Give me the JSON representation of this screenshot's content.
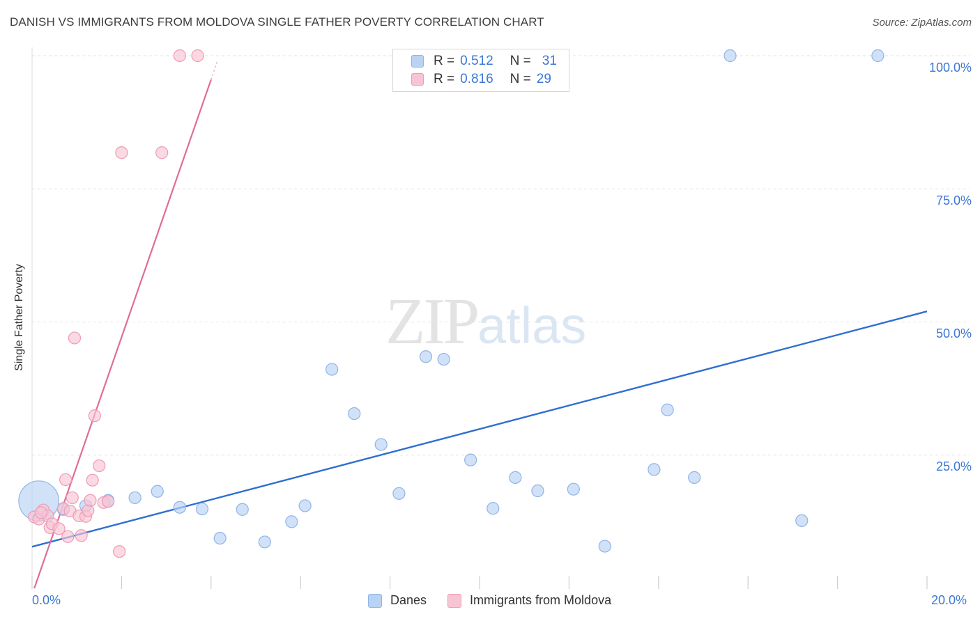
{
  "header": {
    "title": "DANISH VS IMMIGRANTS FROM MOLDOVA SINGLE FATHER POVERTY CORRELATION CHART",
    "source": "Source: ZipAtlas.com"
  },
  "watermark": {
    "zip": "ZIP",
    "atlas": "atlas"
  },
  "legend": {
    "danes": {
      "r_label": "R =",
      "r_value": "0.512",
      "n_label": "N =",
      "n_value": "31"
    },
    "moldova": {
      "r_label": "R =",
      "r_value": "0.816",
      "n_label": "N =",
      "n_value": "29"
    }
  },
  "colors": {
    "danes_fill": "#b9d3f5",
    "danes_stroke": "#8fb4e6",
    "danes_line": "#2e6fd1",
    "moldova_fill": "#f8c4d4",
    "moldova_stroke": "#ee9bb5",
    "moldova_line": "#e06c98",
    "axis_text": "#3b78d4"
  },
  "chart_data": {
    "type": "scatter",
    "title": "DANISH VS IMMIGRANTS FROM MOLDOVA SINGLE FATHER POVERTY CORRELATION CHART",
    "xlabel": "",
    "ylabel": "Single Father Poverty",
    "xlim": [
      0,
      20
    ],
    "ylim": [
      0,
      102
    ],
    "x_ticks": [
      "0.0%",
      "20.0%"
    ],
    "y_ticks": [
      "25.0%",
      "50.0%",
      "75.0%",
      "100.0%"
    ],
    "grid": true,
    "legend_position": "top-center",
    "series": [
      {
        "name": "Danes",
        "points": [
          [
            0.15,
            16.4
          ],
          [
            0.7,
            14.8
          ],
          [
            1.2,
            15.5
          ],
          [
            1.7,
            16.5
          ],
          [
            2.3,
            17.0
          ],
          [
            2.8,
            18.2
          ],
          [
            3.3,
            15.2
          ],
          [
            3.8,
            14.9
          ],
          [
            4.2,
            9.4
          ],
          [
            4.7,
            14.8
          ],
          [
            5.2,
            8.7
          ],
          [
            5.8,
            12.5
          ],
          [
            6.1,
            15.5
          ],
          [
            6.7,
            41.1
          ],
          [
            7.2,
            32.8
          ],
          [
            7.8,
            27.0
          ],
          [
            8.2,
            17.8
          ],
          [
            8.8,
            43.5
          ],
          [
            9.2,
            43.0
          ],
          [
            9.8,
            24.1
          ],
          [
            10.3,
            15.0
          ],
          [
            10.8,
            20.8
          ],
          [
            11.3,
            18.3
          ],
          [
            12.1,
            18.6
          ],
          [
            12.8,
            7.9
          ],
          [
            13.9,
            22.3
          ],
          [
            14.2,
            33.5
          ],
          [
            14.8,
            20.8
          ],
          [
            15.6,
            100.0
          ],
          [
            17.2,
            12.7
          ],
          [
            18.9,
            100.0
          ]
        ],
        "sizes": [
          5.2,
          1,
          1,
          1,
          1,
          1,
          1,
          1,
          1,
          1,
          1,
          1,
          1,
          1,
          1,
          1,
          1,
          1,
          1,
          1,
          1,
          1,
          1,
          1,
          1,
          1,
          1,
          1,
          1,
          1,
          1
        ],
        "trend": {
          "x": [
            0,
            20
          ],
          "y": [
            7.8,
            52.0
          ]
        }
      },
      {
        "name": "Immigrants from Moldova",
        "points": [
          [
            0.05,
            13.4
          ],
          [
            0.15,
            13.0
          ],
          [
            0.25,
            14.7
          ],
          [
            0.35,
            13.6
          ],
          [
            0.4,
            11.4
          ],
          [
            0.45,
            12.1
          ],
          [
            0.6,
            11.2
          ],
          [
            0.7,
            15.0
          ],
          [
            0.75,
            20.4
          ],
          [
            0.8,
            9.7
          ],
          [
            0.85,
            14.5
          ],
          [
            0.9,
            17.0
          ],
          [
            0.95,
            47.0
          ],
          [
            1.05,
            13.6
          ],
          [
            1.1,
            9.9
          ],
          [
            1.2,
            13.5
          ],
          [
            1.25,
            14.6
          ],
          [
            1.3,
            16.5
          ],
          [
            1.35,
            20.3
          ],
          [
            1.4,
            32.4
          ],
          [
            1.5,
            23.0
          ],
          [
            1.6,
            16.1
          ],
          [
            1.7,
            16.3
          ],
          [
            1.95,
            6.9
          ],
          [
            2.0,
            81.8
          ],
          [
            2.9,
            81.8
          ],
          [
            3.3,
            100.0
          ],
          [
            3.7,
            100.0
          ],
          [
            0.2,
            14.2
          ]
        ],
        "sizes": [
          1,
          1,
          1,
          1,
          1,
          1,
          1,
          1,
          1,
          1,
          1,
          1,
          1,
          1,
          1,
          1,
          1,
          1,
          1,
          1,
          1,
          1,
          1,
          1,
          1,
          1,
          1,
          1,
          1
        ],
        "trend": {
          "x": [
            0.05,
            4.0
          ],
          "y": [
            0.0,
            95.5
          ]
        }
      }
    ]
  },
  "bottom_legend": {
    "danes": "Danes",
    "moldova": "Immigrants from Moldova"
  }
}
